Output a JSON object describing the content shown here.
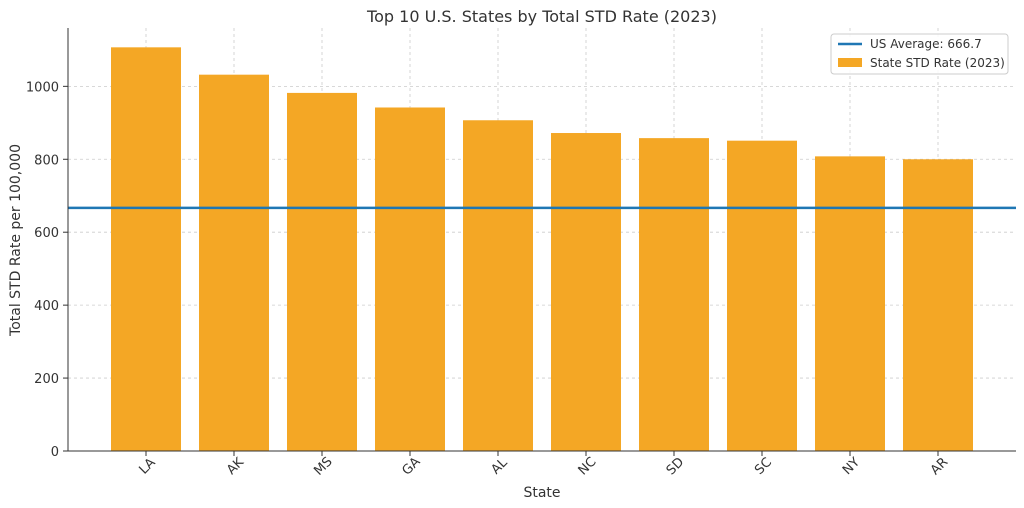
{
  "chart_data": {
    "type": "bar",
    "title": "Top 10 U.S. States by Total STD Rate (2023)",
    "xlabel": "State",
    "ylabel": "Total STD Rate per 100,000",
    "categories": [
      "LA",
      "AK",
      "MS",
      "GA",
      "AL",
      "NC",
      "SD",
      "SC",
      "NY",
      "AR"
    ],
    "series": [
      {
        "name": "State STD Rate (2023)",
        "values": [
          1107,
          1032,
          982,
          942,
          907,
          872,
          858,
          851,
          808,
          800
        ],
        "color": "#f4a725"
      }
    ],
    "reference_line": {
      "name": "US Average: 666.7",
      "value": 666.7,
      "color": "#1f77b4"
    },
    "ylim": [
      0,
      1160
    ],
    "yticks": [
      0,
      200,
      400,
      600,
      800,
      1000
    ],
    "grid": true,
    "legend_position": "top-right"
  }
}
